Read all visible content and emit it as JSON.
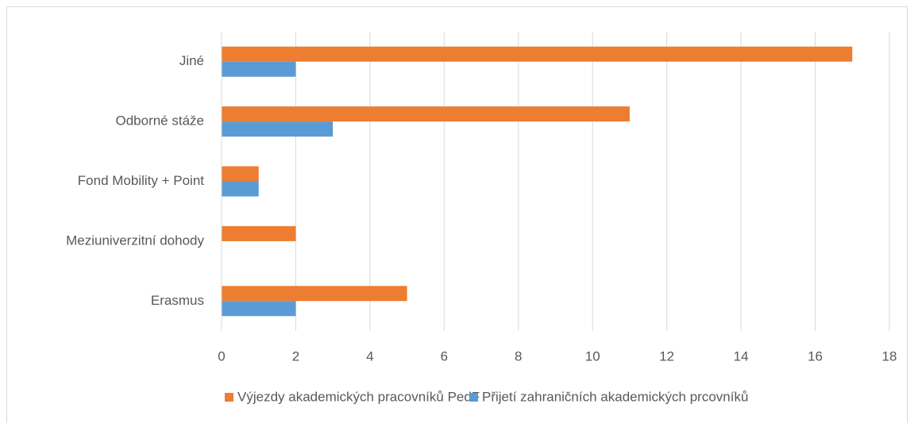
{
  "chart_data": {
    "type": "hbar",
    "categories": [
      "Jiné",
      "Odborné stáže",
      "Fond Mobility + Point",
      "Meziuniverzitní dohody",
      "Erasmus"
    ],
    "series": [
      {
        "name": "Výjezdy akademických pracovníků PedF",
        "color": "#ed7d31",
        "values": [
          17,
          11,
          1,
          2,
          5
        ]
      },
      {
        "name": "Přijetí zahraničních akademických prcovníků",
        "color": "#5b9bd5",
        "values": [
          2,
          3,
          1,
          0,
          2
        ]
      }
    ],
    "xlim": [
      0,
      18
    ],
    "xticks": [
      0,
      2,
      4,
      6,
      8,
      10,
      12,
      14,
      16,
      18
    ],
    "grid": true,
    "legend": "bottom"
  }
}
